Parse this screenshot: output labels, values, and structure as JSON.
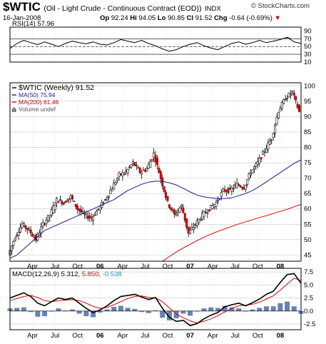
{
  "header": {
    "symbol": "$WTIC",
    "description": "(Oil - Light Crude - Continuous Contract (EOD))",
    "exchange": "INDX",
    "watermark": "© StockCharts.com",
    "date": "16-Jan-2008",
    "open_label": "Op",
    "open": "92.24",
    "high_label": "Hi",
    "high": "94.05",
    "low_label": "Lo",
    "low": "90.85",
    "close_label": "Cl",
    "close": "91.52",
    "change_label": "Chg",
    "change": "-0.64 (-0.69%)",
    "change_arrow": "▼"
  },
  "colors": {
    "price": "#000000",
    "ma50": "#1a1a9c",
    "ma200": "#e00000",
    "macd_signal": "#e00000",
    "hist": "#4a6fa8",
    "rsi_fill": "#2e8b2e",
    "ratio": "#1e90c8"
  },
  "chart_data": [
    {
      "type": "line",
      "indicator": "RSI(14)",
      "legend": "RSI(14) 57.96",
      "ylim": [
        10,
        100
      ],
      "ticks": [
        90,
        70,
        50,
        30,
        10
      ],
      "reference_lines": [
        70,
        50,
        30
      ],
      "x_weeks": [
        0,
        4,
        8,
        12,
        16,
        20,
        24,
        28,
        32,
        36,
        40,
        44,
        48,
        52,
        56,
        60,
        64,
        68,
        72,
        76,
        80,
        84,
        88,
        92,
        96,
        100,
        104,
        108,
        112,
        116,
        120,
        124,
        128,
        132,
        136,
        140,
        144,
        148,
        152,
        156,
        160,
        164,
        168
      ],
      "values": [
        45,
        58,
        66,
        60,
        55,
        62,
        56,
        50,
        58,
        64,
        60,
        57,
        62,
        56,
        54,
        60,
        68,
        64,
        60,
        66,
        58,
        52,
        44,
        38,
        42,
        50,
        56,
        60,
        52,
        46,
        42,
        50,
        58,
        62,
        56,
        60,
        66,
        60,
        64,
        68,
        74,
        62,
        58
      ]
    },
    {
      "type": "candlestick",
      "title": "$WTIC (Weekly) 91.52",
      "legend": [
        {
          "name": "$WTIC (Weekly) 91.52"
        },
        {
          "name": "MA(50) 75.94"
        },
        {
          "name": "MA(200) 61.46"
        },
        {
          "name": "Volume undef"
        }
      ],
      "ylim": [
        43,
        101
      ],
      "y_ticks": [
        100,
        95,
        90,
        85,
        80,
        75,
        70,
        65,
        60,
        55,
        50,
        45
      ],
      "x_tick_labels": [
        "Apr",
        "Jul",
        "Oct",
        "06",
        "Apr",
        "Jul",
        "Oct",
        "07",
        "Apr",
        "Jul",
        "Oct",
        "08"
      ],
      "x_tick_weeks": [
        13,
        26,
        39,
        52,
        65,
        78,
        91,
        104,
        117,
        130,
        143,
        156
      ],
      "x_weeks": [
        0,
        4,
        8,
        12,
        16,
        20,
        24,
        28,
        32,
        36,
        40,
        44,
        48,
        52,
        56,
        60,
        64,
        68,
        72,
        76,
        80,
        84,
        88,
        92,
        96,
        100,
        104,
        108,
        112,
        116,
        120,
        124,
        128,
        132,
        136,
        140,
        144,
        148,
        152,
        156,
        160,
        164,
        168
      ],
      "close": [
        45,
        51,
        55,
        53,
        50,
        55,
        58,
        63,
        62,
        64,
        60,
        58,
        57,
        60,
        63,
        67,
        71,
        72,
        75,
        72,
        73,
        78,
        70,
        62,
        58,
        61,
        52,
        55,
        58,
        60,
        62,
        66,
        66,
        68,
        67,
        72,
        75,
        79,
        83,
        92,
        96,
        98,
        91.5
      ],
      "ma50": [
        44,
        45,
        47,
        49,
        51,
        53,
        54,
        55,
        56,
        57,
        58,
        59,
        60,
        61,
        62,
        63,
        64.5,
        66,
        67,
        68,
        68.7,
        69,
        69,
        68.5,
        67.8,
        66.7,
        65.5,
        64.5,
        63.9,
        63.6,
        63.4,
        63.4,
        63.6,
        64.3,
        65,
        66,
        67.3,
        68.8,
        70.3,
        71.8,
        73.3,
        74.8,
        75.94
      ],
      "ma200": [
        null,
        null,
        null,
        null,
        null,
        null,
        null,
        null,
        null,
        null,
        null,
        null,
        null,
        null,
        null,
        null,
        null,
        null,
        null,
        null,
        null,
        null,
        43,
        44.5,
        46,
        47.3,
        48.5,
        49.7,
        50.8,
        51.8,
        52.7,
        53.5,
        54.3,
        55.1,
        55.8,
        56.5,
        57.2,
        57.8,
        58.5,
        59.2,
        59.9,
        60.7,
        61.46
      ]
    },
    {
      "type": "line",
      "indicator": "MACD(12,26,9)",
      "legend_label": "MACD(12,26,9)",
      "macd_value": "5.312",
      "signal_value": "5.850",
      "hist_value": "-0.538",
      "ylim": [
        -3.6,
        8.2
      ],
      "y_ticks": [
        7.5,
        5.0,
        2.5,
        0.0,
        -2.5
      ],
      "x_tick_labels": [
        "Apr",
        "Jul",
        "Oct",
        "06",
        "Apr",
        "Jul",
        "Oct",
        "07",
        "Apr",
        "Jul",
        "Oct",
        "08"
      ],
      "x_tick_weeks": [
        13,
        26,
        39,
        52,
        65,
        78,
        91,
        104,
        117,
        130,
        143,
        156
      ],
      "x_weeks": [
        0,
        4,
        8,
        12,
        16,
        20,
        24,
        28,
        32,
        36,
        40,
        44,
        48,
        52,
        56,
        60,
        64,
        68,
        72,
        76,
        80,
        84,
        88,
        92,
        96,
        100,
        104,
        108,
        112,
        116,
        120,
        124,
        128,
        132,
        136,
        140,
        144,
        148,
        152,
        156,
        160,
        164,
        168
      ],
      "macd": [
        2.5,
        3.0,
        3.5,
        2.8,
        1.5,
        1.0,
        1.8,
        2.5,
        2.2,
        2.5,
        1.5,
        0.5,
        -0.3,
        0.2,
        1.0,
        2.0,
        2.8,
        3.0,
        3.2,
        2.7,
        2.2,
        2.6,
        0.5,
        -1.2,
        -2.0,
        -1.8,
        -2.8,
        -2.4,
        -1.5,
        -0.8,
        -0.3,
        0.8,
        1.2,
        1.5,
        1.0,
        1.6,
        2.3,
        3.2,
        3.8,
        5.5,
        7.0,
        7.2,
        5.312
      ],
      "signal": [
        2.0,
        2.4,
        2.8,
        3.0,
        2.6,
        2.0,
        1.8,
        2.0,
        2.1,
        2.2,
        2.0,
        1.5,
        0.9,
        0.5,
        0.7,
        1.2,
        1.8,
        2.4,
        2.8,
        2.9,
        2.6,
        2.5,
        1.8,
        0.6,
        -0.6,
        -1.3,
        -1.9,
        -2.3,
        -2.0,
        -1.5,
        -0.9,
        -0.2,
        0.5,
        1.0,
        1.1,
        1.3,
        1.7,
        2.3,
        2.9,
        4.0,
        5.2,
        6.3,
        5.85
      ]
    }
  ]
}
